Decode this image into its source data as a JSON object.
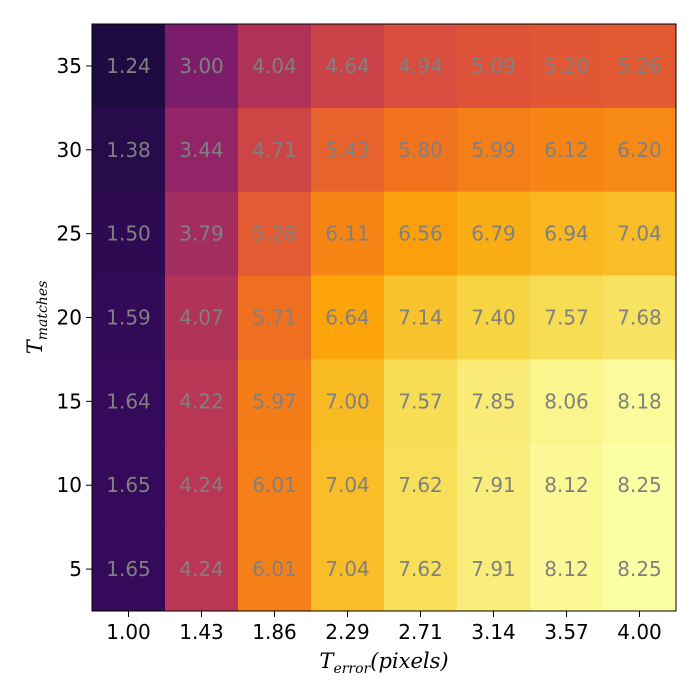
{
  "chart_data": {
    "type": "heatmap",
    "title": "",
    "colormap": "inferno",
    "value_range": [
      1.24,
      8.25
    ],
    "x": {
      "label_main": "T",
      "label_sub": "error",
      "label_suffix": "(pixels)",
      "ticks": [
        "1.00",
        "1.43",
        "1.86",
        "2.29",
        "2.71",
        "3.14",
        "3.57",
        "4.00"
      ]
    },
    "y": {
      "label_main": "T",
      "label_sub": "matches",
      "ticks_top_to_bottom": [
        "35",
        "30",
        "25",
        "20",
        "15",
        "10",
        "5"
      ]
    },
    "values_top_to_bottom": [
      [
        1.24,
        3.0,
        4.04,
        4.64,
        4.94,
        5.09,
        5.2,
        5.26
      ],
      [
        1.38,
        3.44,
        4.71,
        5.43,
        5.8,
        5.99,
        6.12,
        6.2
      ],
      [
        1.5,
        3.79,
        5.28,
        6.11,
        6.56,
        6.79,
        6.94,
        7.04
      ],
      [
        1.59,
        4.07,
        5.71,
        6.64,
        7.14,
        7.4,
        7.57,
        7.68
      ],
      [
        1.64,
        4.22,
        5.97,
        7.0,
        7.57,
        7.85,
        8.06,
        8.18
      ],
      [
        1.65,
        4.24,
        6.01,
        7.04,
        7.62,
        7.91,
        8.12,
        8.25
      ],
      [
        1.65,
        4.24,
        6.01,
        7.04,
        7.62,
        7.91,
        8.12,
        8.25
      ]
    ],
    "annotation_color": "#808080"
  }
}
